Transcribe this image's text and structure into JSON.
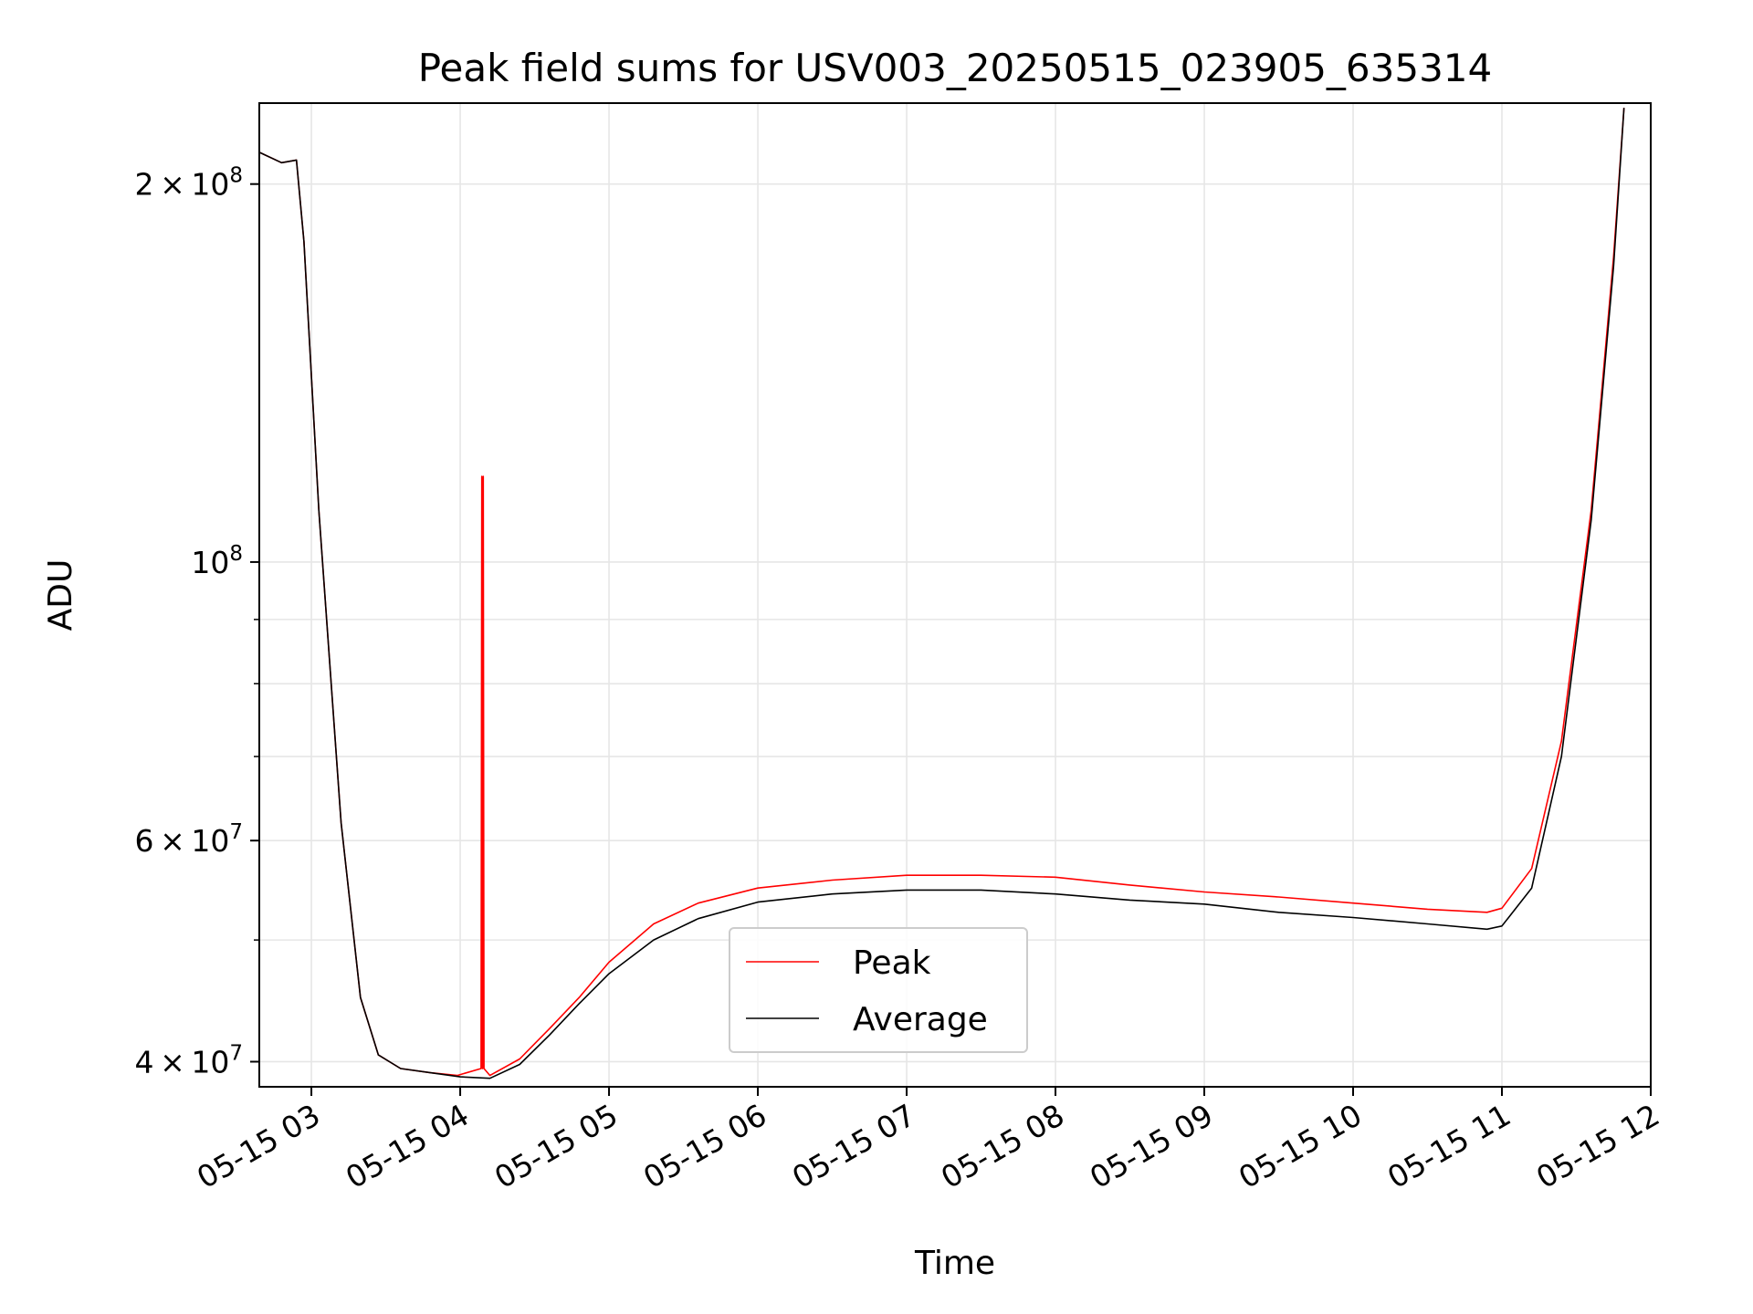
{
  "chart_data": {
    "type": "line",
    "title": "Peak field sums for USV003_20250515_023905_635314",
    "xlabel": "Time",
    "ylabel": "ADU",
    "x_unit": "hours (2025-05-15)",
    "xlim": [
      2.65,
      12.0
    ],
    "ylim": [
      38200000,
      232000000
    ],
    "yscale": "log",
    "grid": true,
    "legend_position": "lower center",
    "x_ticks": [
      {
        "value": 3,
        "label": "05-15 03"
      },
      {
        "value": 4,
        "label": "05-15 04"
      },
      {
        "value": 5,
        "label": "05-15 05"
      },
      {
        "value": 6,
        "label": "05-15 06"
      },
      {
        "value": 7,
        "label": "05-15 07"
      },
      {
        "value": 8,
        "label": "05-15 08"
      },
      {
        "value": 9,
        "label": "05-15 09"
      },
      {
        "value": 10,
        "label": "05-15 10"
      },
      {
        "value": 11,
        "label": "05-15 11"
      },
      {
        "value": 12,
        "label": "05-15 12"
      }
    ],
    "y_ticks": [
      {
        "value": 40000000,
        "base": "4",
        "exp": "7"
      },
      {
        "value": 60000000,
        "base": "6",
        "exp": "7"
      },
      {
        "value": 100000000,
        "base": "",
        "exp": "8"
      },
      {
        "value": 200000000,
        "base": "2",
        "exp": "8"
      }
    ],
    "y_minor_ticks": [
      50000000,
      70000000,
      80000000,
      90000000
    ],
    "colors": {
      "peak": "#ff0000",
      "average": "#000000",
      "grid": "#e6e6e6"
    },
    "series": [
      {
        "name": "Peak",
        "color": "#ff0000",
        "x": [
          2.65,
          2.8,
          2.9,
          2.95,
          3.05,
          3.2,
          3.33,
          3.45,
          3.6,
          3.8,
          3.98,
          4.14,
          4.145,
          4.15,
          4.155,
          4.16,
          4.2,
          4.4,
          4.6,
          4.8,
          5.0,
          5.3,
          5.6,
          6.0,
          6.5,
          7.0,
          7.5,
          8.0,
          8.5,
          9.0,
          9.5,
          10.0,
          10.5,
          10.9,
          11.0,
          11.2,
          11.4,
          11.6,
          11.75,
          11.82
        ],
        "y": [
          212000000,
          208000000,
          209000000,
          180000000,
          110000000,
          62000000,
          45000000,
          40500000,
          39500000,
          39200000,
          39000000,
          39500000,
          117000000,
          39500000,
          117000000,
          39500000,
          39000000,
          40200000,
          42500000,
          45000000,
          48000000,
          51500000,
          53500000,
          55000000,
          55800000,
          56300000,
          56300000,
          56100000,
          55300000,
          54600000,
          54100000,
          53500000,
          52900000,
          52600000,
          53000000,
          57000000,
          72000000,
          110000000,
          175000000,
          230000000
        ]
      },
      {
        "name": "Average",
        "color": "#000000",
        "x": [
          2.65,
          2.8,
          2.9,
          2.95,
          3.05,
          3.2,
          3.33,
          3.45,
          3.6,
          3.8,
          4.0,
          4.2,
          4.4,
          4.6,
          4.8,
          5.0,
          5.3,
          5.6,
          6.0,
          6.5,
          7.0,
          7.5,
          8.0,
          8.5,
          9.0,
          9.5,
          10.0,
          10.5,
          10.9,
          11.0,
          11.2,
          11.4,
          11.6,
          11.75,
          11.82
        ],
        "y": [
          212000000,
          208000000,
          209000000,
          180000000,
          110000000,
          62000000,
          45000000,
          40500000,
          39500000,
          39200000,
          38900000,
          38800000,
          39800000,
          42000000,
          44500000,
          47000000,
          50000000,
          52000000,
          53600000,
          54400000,
          54800000,
          54800000,
          54400000,
          53800000,
          53400000,
          52600000,
          52100000,
          51500000,
          51000000,
          51300000,
          55000000,
          70000000,
          108000000,
          172000000,
          230000000
        ]
      }
    ]
  }
}
